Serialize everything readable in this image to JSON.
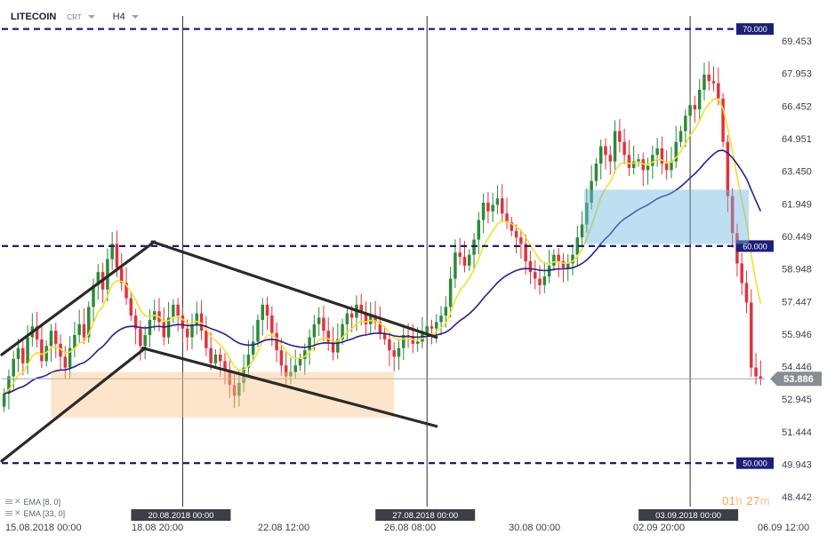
{
  "header": {
    "symbol": "LITECOIN",
    "type": "CRT",
    "timeframe": "H4"
  },
  "indicators": [
    {
      "label": "EMA [8, 0]",
      "color": "#f2e02a"
    },
    {
      "label": "EMA [33, 0]",
      "color": "#2a1f8f"
    }
  ],
  "timer": {
    "hours": "01",
    "h_unit": "h",
    "minutes": "27",
    "m_unit": "m"
  },
  "chart_data": {
    "type": "candlestick",
    "ylim": [
      48.0,
      70.6
    ],
    "y_ticks": [
      "69.453",
      "67.953",
      "66.452",
      "64.951",
      "63.450",
      "61.949",
      "60.449",
      "58.948",
      "57.447",
      "55.946",
      "54.446",
      "52.945",
      "51.444",
      "49.943",
      "48.442"
    ],
    "x_labels": [
      "15.08.2018 00:00",
      "18.08 20:00",
      "22.08 12:00",
      "26.08 08:00",
      "30.08 00:00",
      "02.09 20:00",
      "06.09 12:00"
    ],
    "period_markers": [
      {
        "label": "20.08.2018 00:00",
        "bar": 38.5
      },
      {
        "label": "27.08.2018 00:00",
        "bar": 90.5
      },
      {
        "label": "03.09.2018 00:00",
        "bar": 146.5
      }
    ],
    "current_price": 53.886,
    "levels": [
      {
        "value": 70.0,
        "label": "70.000"
      },
      {
        "value": 60.0,
        "label": "60.000"
      },
      {
        "value": 50.0,
        "label": "50.000"
      }
    ],
    "colors": {
      "up": "#2c8a3a",
      "down": "#e0323c",
      "level": "#1b1f7a",
      "pattern": "#2a2a2a"
    },
    "closes": [
      53.2,
      54.0,
      54.8,
      55.3,
      54.6,
      55.8,
      56.3,
      55.7,
      54.7,
      55.4,
      56.1,
      55.5,
      54.9,
      54.4,
      55.3,
      55.9,
      56.4,
      55.8,
      57.2,
      58.2,
      58.8,
      58.0,
      59.4,
      60.1,
      59.0,
      58.3,
      57.6,
      56.8,
      56.2,
      55.4,
      55.9,
      56.6,
      57.0,
      56.5,
      55.8,
      56.7,
      57.3,
      56.8,
      56.2,
      55.8,
      56.4,
      56.9,
      56.1,
      55.3,
      54.6,
      55.0,
      54.7,
      54.3,
      53.6,
      53.1,
      53.7,
      54.4,
      55.0,
      55.6,
      56.6,
      57.3,
      56.8,
      56.0,
      55.2,
      54.5,
      54.0,
      54.2,
      54.5,
      54.8,
      55.2,
      55.8,
      56.4,
      56.7,
      56.1,
      55.6,
      55.1,
      55.7,
      56.4,
      56.9,
      56.7,
      57.3,
      56.9,
      56.4,
      56.8,
      56.5,
      56.0,
      55.7,
      55.2,
      54.9,
      55.3,
      55.9,
      55.8,
      55.5,
      55.6,
      56.0,
      56.3,
      56.2,
      56.5,
      56.8,
      57.2,
      58.5,
      59.7,
      59.5,
      59.1,
      59.6,
      60.3,
      61.2,
      62.0,
      61.6,
      61.9,
      62.2,
      61.5,
      61.1,
      60.7,
      60.4,
      60.1,
      59.3,
      58.8,
      58.5,
      58.2,
      58.6,
      59.1,
      59.6,
      59.3,
      59.0,
      59.2,
      59.6,
      60.4,
      61.0,
      62.0,
      63.0,
      63.8,
      64.6,
      64.2,
      63.9,
      65.3,
      64.8,
      64.2,
      63.6,
      63.9,
      64.0,
      63.5,
      63.7,
      64.2,
      64.5,
      63.8,
      63.5,
      63.9,
      64.8,
      65.3,
      66.0,
      66.5,
      66.3,
      67.2,
      67.9,
      67.6,
      67.5,
      66.8,
      64.8,
      62.3,
      60.6,
      59.2,
      58.3,
      57.4,
      54.4,
      54.0,
      53.9
    ]
  }
}
